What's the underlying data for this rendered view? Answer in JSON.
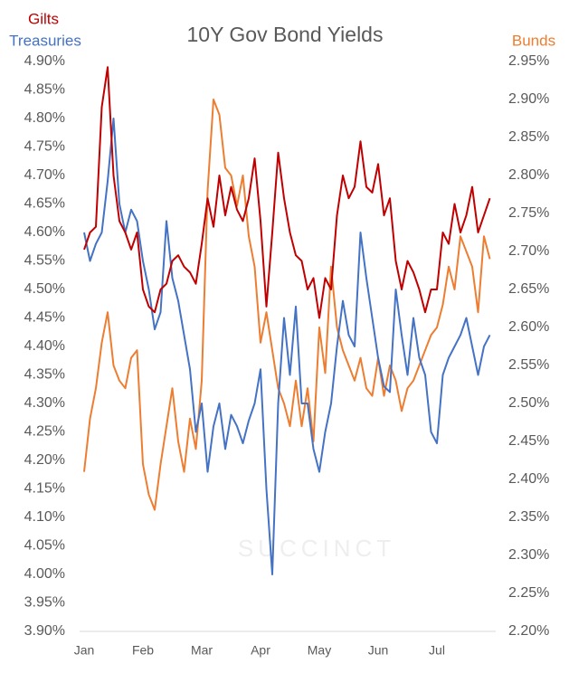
{
  "chart_data": {
    "type": "line",
    "title": "10Y Gov Bond Yields",
    "watermark": "SUCCINCT",
    "categories": [
      "Jan",
      null,
      null,
      null,
      null,
      null,
      null,
      null,
      null,
      null,
      "Feb",
      null,
      null,
      null,
      null,
      null,
      null,
      null,
      null,
      null,
      "Mar",
      null,
      null,
      null,
      null,
      null,
      null,
      null,
      null,
      null,
      "Apr",
      null,
      null,
      null,
      null,
      null,
      null,
      null,
      null,
      null,
      "May",
      null,
      null,
      null,
      null,
      null,
      null,
      null,
      null,
      null,
      "Jun",
      null,
      null,
      null,
      null,
      null,
      null,
      null,
      null,
      null,
      "Jul",
      null,
      null,
      null,
      null,
      null,
      null,
      null,
      null,
      null
    ],
    "series": [
      {
        "name": "Gilts",
        "color": "#c00000",
        "axis": "y",
        "values": [
          4.57,
          4.6,
          4.61,
          4.82,
          4.89,
          4.7,
          4.62,
          4.6,
          4.57,
          4.6,
          4.5,
          4.47,
          4.46,
          4.5,
          4.51,
          4.55,
          4.56,
          4.54,
          4.53,
          4.51,
          4.58,
          4.66,
          4.61,
          4.7,
          4.63,
          4.68,
          4.64,
          4.62,
          4.66,
          4.73,
          4.62,
          4.47,
          4.6,
          4.74,
          4.66,
          4.6,
          4.56,
          4.55,
          4.5,
          4.52,
          4.45,
          4.52,
          4.5,
          4.63,
          4.7,
          4.66,
          4.68,
          4.76,
          4.68,
          4.67,
          4.72,
          4.63,
          4.66,
          4.55,
          4.5,
          4.55,
          4.53,
          4.5,
          4.46,
          4.5,
          4.5,
          4.6,
          4.58,
          4.65,
          4.6,
          4.63,
          4.68,
          4.6,
          4.63,
          4.66
        ]
      },
      {
        "name": "Treasuries",
        "color": "#4472c4",
        "axis": "y",
        "values": [
          4.6,
          4.55,
          4.58,
          4.6,
          4.69,
          4.8,
          4.65,
          4.6,
          4.64,
          4.62,
          4.55,
          4.5,
          4.43,
          4.46,
          4.62,
          4.52,
          4.48,
          4.42,
          4.36,
          4.25,
          4.3,
          4.18,
          4.26,
          4.3,
          4.22,
          4.28,
          4.26,
          4.23,
          4.27,
          4.3,
          4.36,
          4.15,
          4.0,
          4.3,
          4.45,
          4.35,
          4.47,
          4.3,
          4.3,
          4.22,
          4.18,
          4.25,
          4.3,
          4.4,
          4.48,
          4.42,
          4.4,
          4.6,
          4.52,
          4.45,
          4.38,
          4.33,
          4.32,
          4.5,
          4.42,
          4.35,
          4.45,
          4.38,
          4.35,
          4.25,
          4.23,
          4.35,
          4.38,
          4.4,
          4.42,
          4.45,
          4.4,
          4.35,
          4.4,
          4.42
        ]
      },
      {
        "name": "Bunds",
        "color": "#ed7d31",
        "axis": "y2",
        "values": [
          2.41,
          2.48,
          2.52,
          2.58,
          2.62,
          2.55,
          2.53,
          2.52,
          2.56,
          2.57,
          2.42,
          2.38,
          2.36,
          2.42,
          2.47,
          2.52,
          2.45,
          2.41,
          2.48,
          2.44,
          2.53,
          2.78,
          2.9,
          2.88,
          2.81,
          2.8,
          2.76,
          2.8,
          2.72,
          2.68,
          2.58,
          2.62,
          2.57,
          2.52,
          2.5,
          2.47,
          2.53,
          2.47,
          2.52,
          2.45,
          2.6,
          2.54,
          2.68,
          2.6,
          2.57,
          2.55,
          2.53,
          2.56,
          2.52,
          2.51,
          2.56,
          2.51,
          2.55,
          2.53,
          2.49,
          2.52,
          2.53,
          2.55,
          2.57,
          2.59,
          2.6,
          2.63,
          2.68,
          2.65,
          2.72,
          2.7,
          2.68,
          2.62,
          2.72,
          2.69
        ]
      }
    ],
    "ylim": [
      3.9,
      4.9
    ],
    "yticks": [
      {
        "value": 3.9,
        "label": "3.90%"
      },
      {
        "value": 3.95,
        "label": "3.95%"
      },
      {
        "value": 4,
        "label": "4.00%"
      },
      {
        "value": 4.05,
        "label": "4.05%"
      },
      {
        "value": 4.1,
        "label": "4.10%"
      },
      {
        "value": 4.15,
        "label": "4.15%"
      },
      {
        "value": 4.2,
        "label": "4.20%"
      },
      {
        "value": 4.25,
        "label": "4.25%"
      },
      {
        "value": 4.3,
        "label": "4.30%"
      },
      {
        "value": 4.35,
        "label": "4.35%"
      },
      {
        "value": 4.4,
        "label": "4.40%"
      },
      {
        "value": 4.45,
        "label": "4.45%"
      },
      {
        "value": 4.5,
        "label": "4.50%"
      },
      {
        "value": 4.55,
        "label": "4.55%"
      },
      {
        "value": 4.6,
        "label": "4.60%"
      },
      {
        "value": 4.65,
        "label": "4.65%"
      },
      {
        "value": 4.7,
        "label": "4.70%"
      },
      {
        "value": 4.75,
        "label": "4.75%"
      },
      {
        "value": 4.8,
        "label": "4.80%"
      },
      {
        "value": 4.85,
        "label": "4.85%"
      },
      {
        "value": 4.9,
        "label": "4.90%"
      }
    ],
    "y2lim": [
      2.2,
      2.95
    ],
    "y2ticks": [
      {
        "value": 2.2,
        "label": "2.20%"
      },
      {
        "value": 2.25,
        "label": "2.25%"
      },
      {
        "value": 2.3,
        "label": "2.30%"
      },
      {
        "value": 2.35,
        "label": "2.35%"
      },
      {
        "value": 2.4,
        "label": "2.40%"
      },
      {
        "value": 2.45,
        "label": "2.45%"
      },
      {
        "value": 2.5,
        "label": "2.50%"
      },
      {
        "value": 2.55,
        "label": "2.55%"
      },
      {
        "value": 2.6,
        "label": "2.60%"
      },
      {
        "value": 2.65,
        "label": "2.65%"
      },
      {
        "value": 2.7,
        "label": "2.70%"
      },
      {
        "value": 2.75,
        "label": "2.75%"
      },
      {
        "value": 2.8,
        "label": "2.80%"
      },
      {
        "value": 2.85,
        "label": "2.85%"
      },
      {
        "value": 2.9,
        "label": "2.90%"
      },
      {
        "value": 2.95,
        "label": "2.95%"
      }
    ],
    "grid": false
  }
}
